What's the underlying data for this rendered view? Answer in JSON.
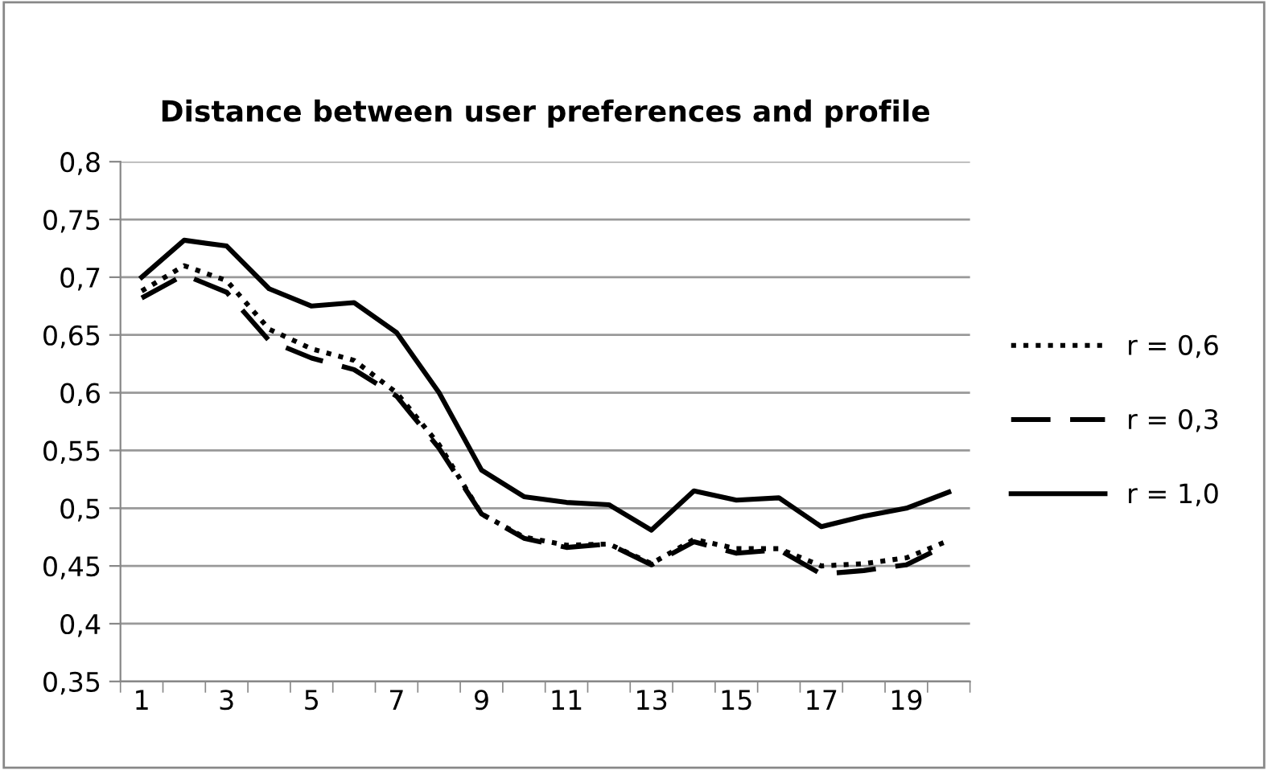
{
  "chart_data": {
    "type": "line",
    "title": "Distance between user preferences and profile",
    "categories": [
      "1",
      null,
      "3",
      null,
      "5",
      null,
      "7",
      null,
      "9",
      null,
      "11",
      null,
      "13",
      null,
      "15",
      null,
      "17",
      null,
      "19",
      null
    ],
    "series": [
      {
        "name": "r = 0,6",
        "color": "#000000",
        "line_style": "dotted",
        "values": [
          0.688,
          0.71,
          0.697,
          0.655,
          0.638,
          0.628,
          0.6,
          0.555,
          0.495,
          0.475,
          0.468,
          0.469,
          0.452,
          0.473,
          0.465,
          0.465,
          0.45,
          0.452,
          0.457,
          0.472
        ]
      },
      {
        "name": "r = 0,3",
        "color": "#000000",
        "line_style": "dashed",
        "values": [
          0.682,
          0.702,
          0.687,
          0.645,
          0.63,
          0.62,
          0.597,
          0.552,
          0.495,
          0.474,
          0.466,
          0.469,
          0.451,
          0.471,
          0.461,
          0.464,
          0.443,
          0.446,
          0.451,
          0.469
        ]
      },
      {
        "name": "r = 1,0",
        "color": "#000000",
        "line_style": "solid",
        "values": [
          0.7,
          0.732,
          0.727,
          0.69,
          0.675,
          0.678,
          0.652,
          0.6,
          0.533,
          0.51,
          0.505,
          0.503,
          0.481,
          0.515,
          0.507,
          0.509,
          0.484,
          0.493,
          0.5,
          0.514
        ]
      }
    ],
    "ylim": [
      0.35,
      0.8
    ],
    "yticks": [
      {
        "value": 0.35,
        "label": "0,35"
      },
      {
        "value": 0.4,
        "label": "0,4"
      },
      {
        "value": 0.45,
        "label": "0,45"
      },
      {
        "value": 0.5,
        "label": "0,5"
      },
      {
        "value": 0.55,
        "label": "0,55"
      },
      {
        "value": 0.6,
        "label": "0,6"
      },
      {
        "value": 0.65,
        "label": "0,65"
      },
      {
        "value": 0.7,
        "label": "0,7"
      },
      {
        "value": 0.75,
        "label": "0,75"
      },
      {
        "value": 0.8,
        "label": "0,8"
      }
    ],
    "grid": "y",
    "legend": "right",
    "marker": "none"
  }
}
